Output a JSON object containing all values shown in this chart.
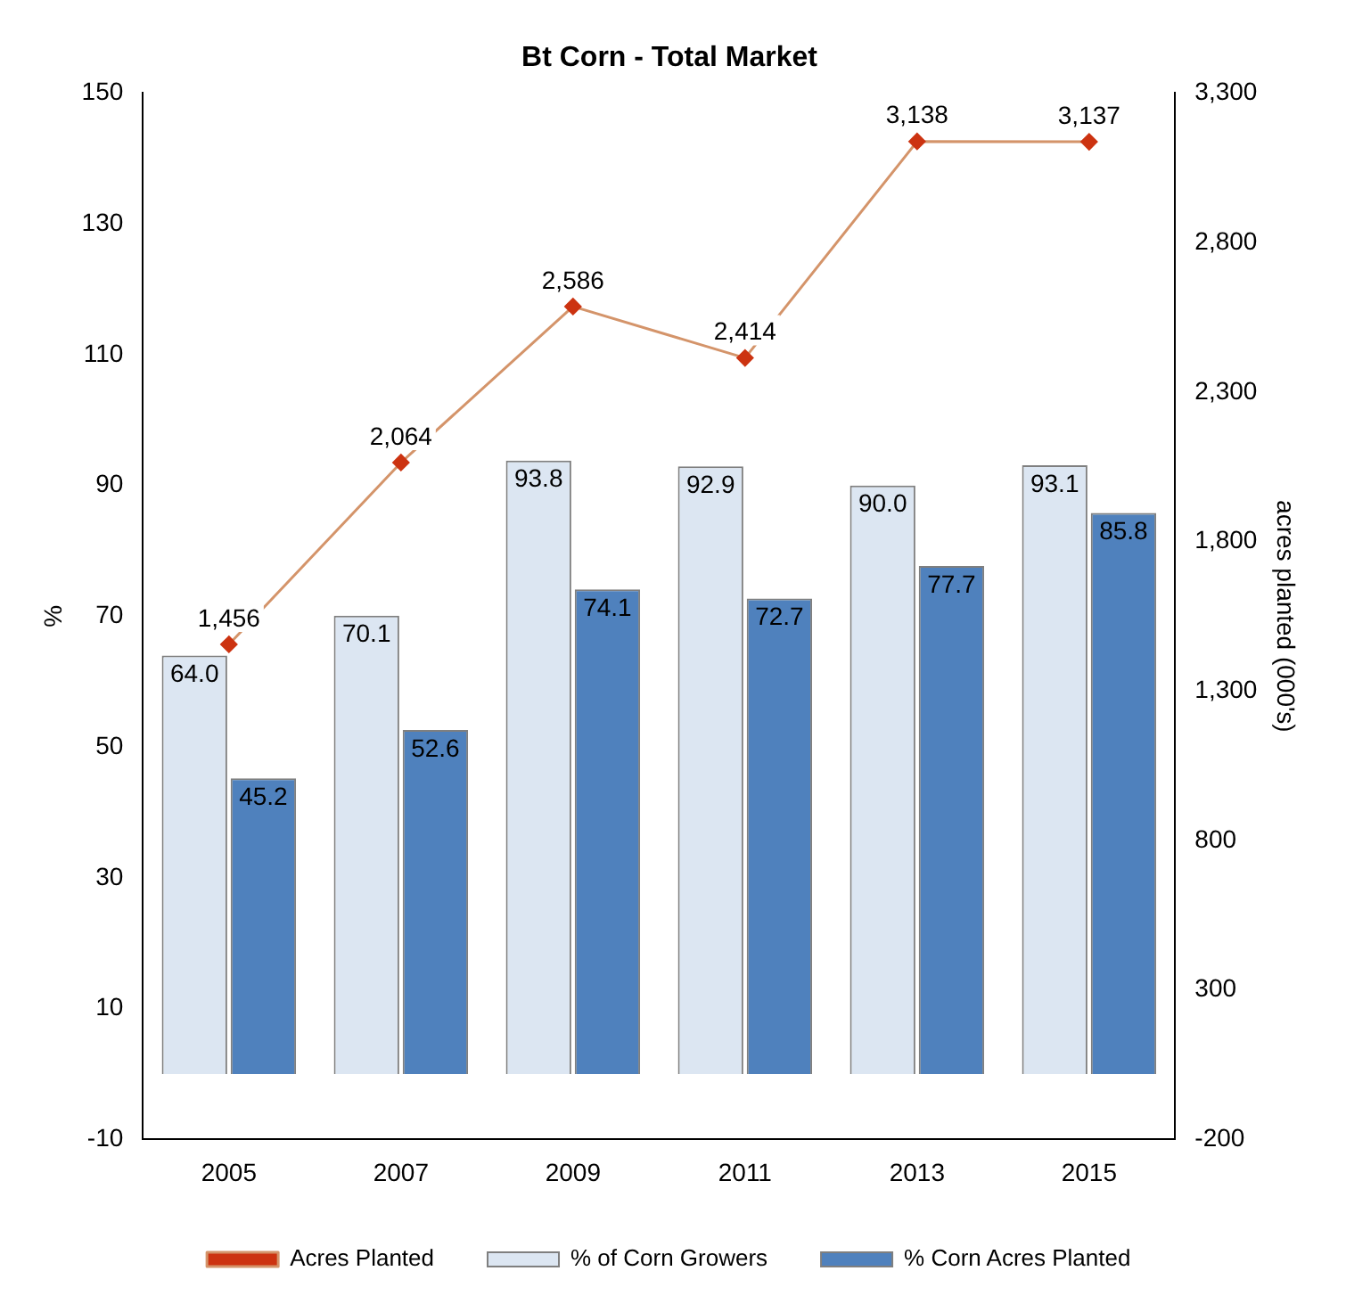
{
  "chart_data": {
    "type": "bar",
    "title": "Bt Corn - Total Market",
    "ylabel": "%",
    "y2label": "acres planted (000's)",
    "categories": [
      "2005",
      "2007",
      "2009",
      "2011",
      "2013",
      "2015"
    ],
    "series": [
      {
        "name": "% of Corn Growers",
        "color": "#dce6f2",
        "values": [
          64.0,
          70.1,
          93.8,
          92.9,
          90.0,
          93.1
        ],
        "value_labels": [
          "64.0",
          "70.1",
          "93.8",
          "92.9",
          "90.0",
          "93.1"
        ]
      },
      {
        "name": "% Corn Acres Planted",
        "color": "#4f81bd",
        "values": [
          45.2,
          52.6,
          74.1,
          72.7,
          77.7,
          85.8
        ],
        "value_labels": [
          "45.2",
          "52.6",
          "74.1",
          "72.7",
          "77.7",
          "85.8"
        ]
      },
      {
        "name": "Acres Planted",
        "type": "line",
        "axis": "y2",
        "color": "#d4946a",
        "marker": "diamond",
        "values": [
          1456,
          2064,
          2586,
          2414,
          3138,
          3137
        ],
        "value_labels": [
          "1,456",
          "2,064",
          "2,586",
          "2,414",
          "3,138",
          "3,137"
        ]
      }
    ],
    "ylim": [
      -10,
      150
    ],
    "yticks": [
      -10,
      10,
      30,
      50,
      70,
      90,
      110,
      130,
      150
    ],
    "y2lim": [
      -200,
      3300
    ],
    "y2ticks": [
      {
        "value": -200,
        "label": "-200"
      },
      {
        "value": 300,
        "label": "300"
      },
      {
        "value": 800,
        "label": "800"
      },
      {
        "value": 1300,
        "label": "1,300"
      },
      {
        "value": 1800,
        "label": "1,800"
      },
      {
        "value": 2300,
        "label": "2,300"
      },
      {
        "value": 2800,
        "label": "2,800"
      },
      {
        "value": 3300,
        "label": "3,300"
      }
    ],
    "grid": false,
    "legend": "bottom"
  }
}
